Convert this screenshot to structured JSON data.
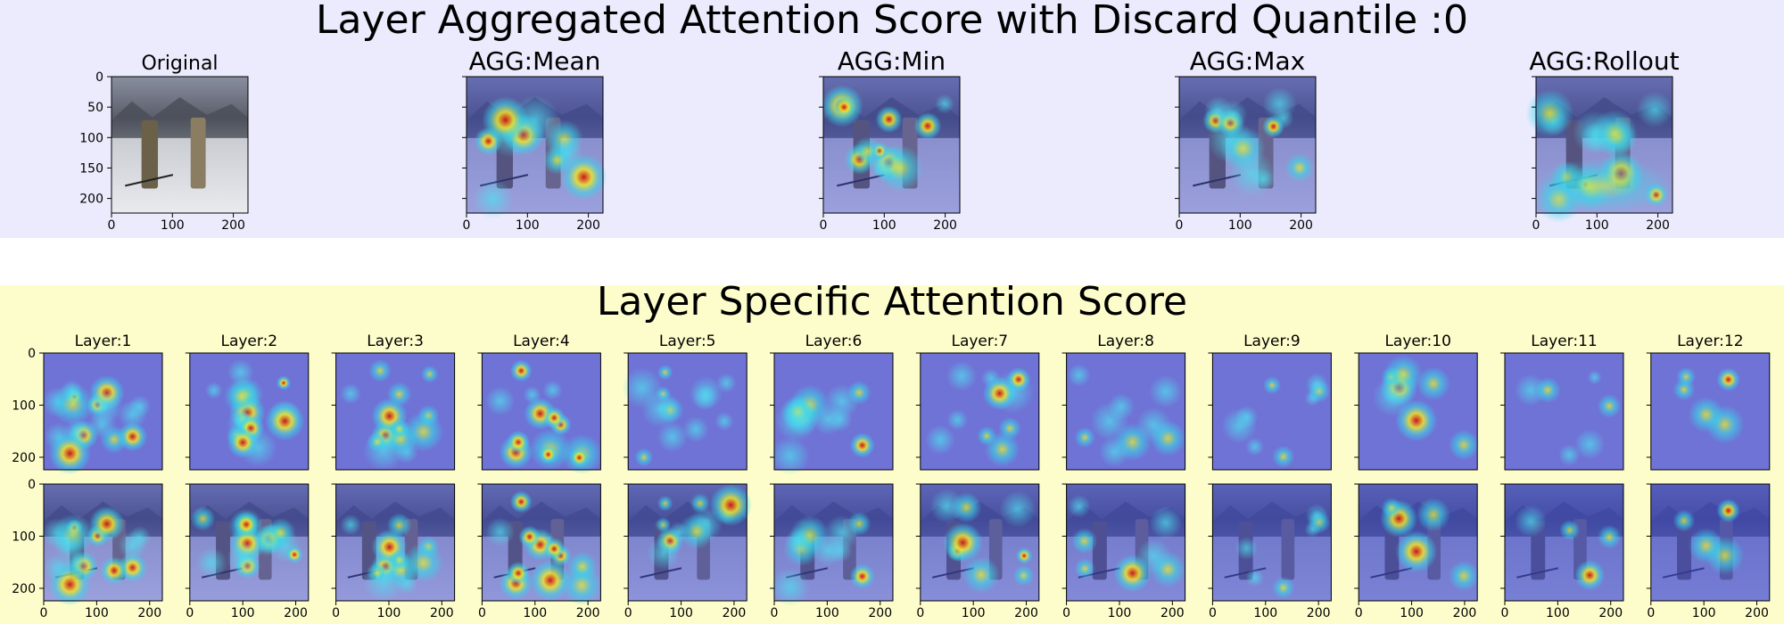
{
  "figure": {
    "main_title": "Layer Aggregated Attention Score with Discard Quantile :0",
    "layer_title": "Layer Specific Attention Score"
  },
  "colors": {
    "top_band": "#ebebfd",
    "bottom_band": "#fdfdcb",
    "heat_low": "#3b46c8",
    "heat_mid": "#39d5ea",
    "heat_high": "#f0e42c",
    "heat_peak": "#d01010"
  },
  "chart_data": [
    {
      "type": "heatmap",
      "group": "aggregated",
      "panels": [
        "Original",
        "AGG:Mean",
        "AGG:Min",
        "AGG:Max",
        "AGG:Rollout"
      ],
      "xlim": [
        0,
        224
      ],
      "ylim": [
        224,
        0
      ],
      "xticks": [
        0,
        100,
        200
      ],
      "yticks": [
        0,
        50,
        100,
        150,
        200
      ],
      "grid": false
    },
    {
      "type": "heatmap",
      "group": "layer_specific",
      "rows": [
        "attention",
        "overlay"
      ],
      "panels": [
        "Layer:1",
        "Layer:2",
        "Layer:3",
        "Layer:4",
        "Layer:5",
        "Layer:6",
        "Layer:7",
        "Layer:8",
        "Layer:9",
        "Layer:10",
        "Layer:11",
        "Layer:12"
      ],
      "xlim": [
        0,
        224
      ],
      "ylim": [
        224,
        0
      ],
      "xticks": [
        0,
        100,
        200
      ],
      "yticks": [
        0,
        100,
        200
      ],
      "grid": false
    }
  ]
}
